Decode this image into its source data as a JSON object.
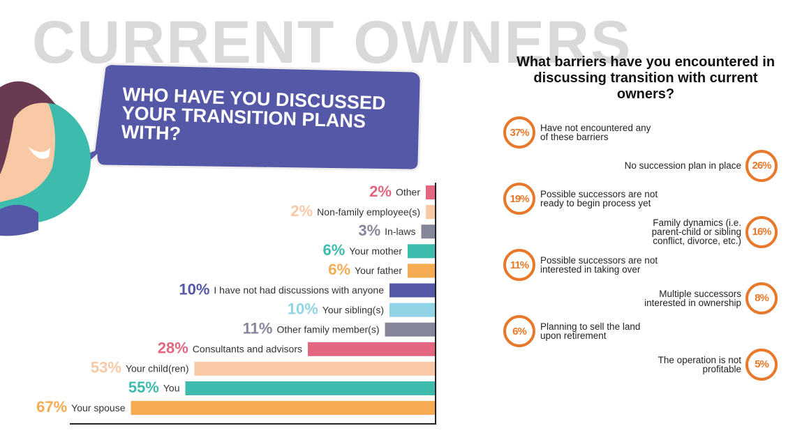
{
  "page_title": "CURRENT OWNERS",
  "chart_data": [
    {
      "type": "bar",
      "orientation": "horizontal",
      "title": "WHO HAVE YOU DISCUSSED YOUR TRANSITION PLANS WITH?",
      "categories": [
        "Other",
        "Non-family employee(s)",
        "In-laws",
        "Your mother",
        "Your father",
        "I have not had discussions with anyone",
        "Your sibling(s)",
        "Other family member(s)",
        "Consultants and advisors",
        "Your child(ren)",
        "You",
        "Your spouse"
      ],
      "values": [
        2,
        2,
        3,
        6,
        6,
        10,
        10,
        11,
        28,
        53,
        55,
        67
      ],
      "value_labels": [
        "2%",
        "2%",
        "3%",
        "6%",
        "6%",
        "10%",
        "10%",
        "11%",
        "28%",
        "53%",
        "55%",
        "67%"
      ],
      "colors": [
        "#e2667f",
        "#f9c9a6",
        "#85869a",
        "#3dbcae",
        "#f5ab52",
        "#5458a6",
        "#91d4e6",
        "#85869a",
        "#e2667f",
        "#f9c9a6",
        "#3dbcae",
        "#f5ab52"
      ]
    },
    {
      "type": "circle-list",
      "title": "What barriers have you encountered in discussing transition with current owners?",
      "categories": [
        "Have not encountered any of these barriers",
        "No succession plan in place",
        "Possible successors are not ready to begin process yet",
        "Family dynamics (i.e. parent-child or sibling conflict, divorce, etc.)",
        "Possible successors are not interested in taking over",
        "Multiple successors interested in ownership",
        "Planning to sell the land upon retirement",
        "The operation is not profitable"
      ],
      "values": [
        37,
        26,
        19,
        16,
        11,
        8,
        6,
        5
      ],
      "value_labels": [
        "37%",
        "26%",
        "19%",
        "16%",
        "11%",
        "8%",
        "6%",
        "5%"
      ],
      "color": "#e8782a"
    }
  ]
}
